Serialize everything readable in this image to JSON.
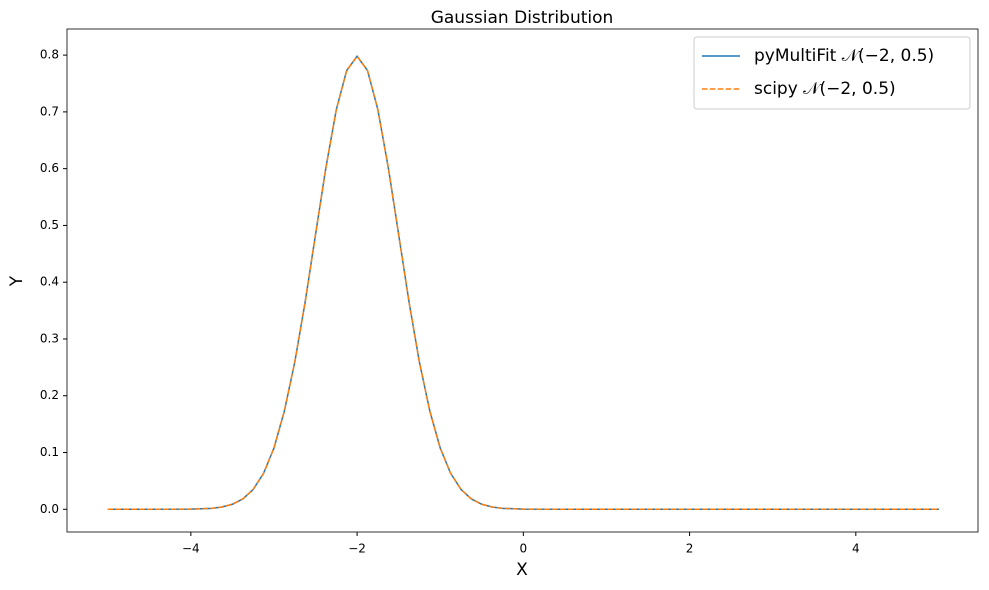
{
  "chart_data": {
    "type": "line",
    "title": "Gaussian Distribution",
    "x_label": "X",
    "y_label": "Y",
    "x": [
      -5,
      -4.5,
      -4,
      -3.75,
      -3.625,
      -3.5,
      -3.375,
      -3.25,
      -3.125,
      -3,
      -2.875,
      -2.75,
      -2.625,
      -2.5,
      -2.375,
      -2.25,
      -2.125,
      -2,
      -1.875,
      -1.75,
      -1.625,
      -1.5,
      -1.375,
      -1.25,
      -1.125,
      -1,
      -0.875,
      -0.75,
      -0.625,
      -0.5,
      -0.375,
      -0.25,
      0,
      0.5,
      1,
      2,
      3,
      4,
      5
    ],
    "series": [
      {
        "name": "pyMultiFit 𝒩(−2, 0.5)",
        "color": "#1f77b4",
        "dash": false,
        "values": [
          0,
          0,
          0.0003,
          0.0017,
          0.0041,
          0.0089,
          0.0182,
          0.035,
          0.0635,
          0.108,
          0.173,
          0.259,
          0.365,
          0.484,
          0.602,
          0.704,
          0.773,
          0.798,
          0.773,
          0.704,
          0.602,
          0.484,
          0.365,
          0.259,
          0.173,
          0.108,
          0.0635,
          0.035,
          0.0182,
          0.0089,
          0.0041,
          0.0017,
          0.0003,
          0,
          0,
          0,
          0,
          0,
          0
        ]
      },
      {
        "name": "scipy 𝒩(−2, 0.5)",
        "color": "#ff7f0e",
        "dash": true,
        "values": [
          0,
          0,
          0.0003,
          0.0017,
          0.0041,
          0.0089,
          0.0182,
          0.035,
          0.0635,
          0.108,
          0.173,
          0.259,
          0.365,
          0.484,
          0.602,
          0.704,
          0.773,
          0.798,
          0.773,
          0.704,
          0.602,
          0.484,
          0.365,
          0.259,
          0.173,
          0.108,
          0.0635,
          0.035,
          0.0182,
          0.0089,
          0.0041,
          0.0017,
          0.0003,
          0,
          0,
          0,
          0,
          0,
          0
        ]
      }
    ],
    "xlim": [
      -5.49,
      5.47
    ],
    "xticks": [
      {
        "value": -4,
        "label": "−4"
      },
      {
        "value": -2,
        "label": "−2"
      },
      0,
      2,
      4
    ],
    "ylim": [
      -0.04,
      0.846
    ],
    "yticks": [
      {
        "value": 0,
        "label": "0.0"
      },
      0.1,
      0.2,
      0.3,
      0.4,
      0.5,
      0.6,
      0.7,
      0.8
    ],
    "grid": false,
    "legend": "upper right"
  }
}
